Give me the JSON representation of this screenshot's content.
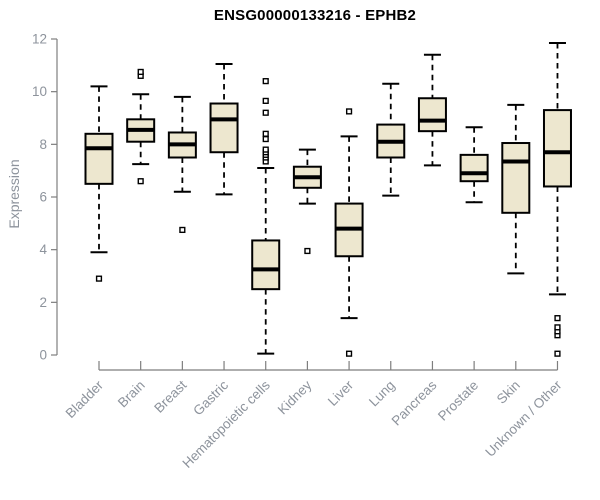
{
  "chart_data": {
    "type": "boxplot",
    "title": "ENSG00000133216 - EPHB2",
    "ylabel": "Expression",
    "xlabel": "",
    "ylim": [
      0,
      12
    ],
    "yticks": [
      0,
      2,
      4,
      6,
      8,
      10,
      12
    ],
    "grid": false,
    "legend": false,
    "box_fill": "#EDE7CF",
    "box_stroke": "#000000",
    "axis_color": "#7E7E7E",
    "axis_text_color": "#8D939C",
    "categories": [
      "Bladder",
      "Brain",
      "Breast",
      "Gastric",
      "Hematopoietic cells",
      "Kidney",
      "Liver",
      "Lung",
      "Pancreas",
      "Prostate",
      "Skin",
      "Unknown / Other"
    ],
    "series": [
      {
        "name": "Bladder",
        "low": 3.9,
        "q1": 6.5,
        "median": 7.85,
        "q3": 8.4,
        "high": 10.2,
        "outliers": [
          2.9
        ]
      },
      {
        "name": "Brain",
        "low": 7.25,
        "q1": 8.1,
        "median": 8.55,
        "q3": 8.95,
        "high": 9.9,
        "outliers": [
          6.6,
          10.6,
          10.75
        ]
      },
      {
        "name": "Breast",
        "low": 6.2,
        "q1": 7.5,
        "median": 8.0,
        "q3": 8.45,
        "high": 9.8,
        "outliers": [
          4.75
        ]
      },
      {
        "name": "Gastric",
        "low": 6.1,
        "q1": 7.7,
        "median": 8.95,
        "q3": 9.55,
        "high": 11.05,
        "outliers": []
      },
      {
        "name": "Hematopoietic cells",
        "low": 0.05,
        "q1": 2.5,
        "median": 3.25,
        "q3": 4.35,
        "high": 7.1,
        "outliers": [
          7.35,
          7.5,
          7.6,
          7.7,
          7.8,
          8.2,
          8.4,
          9.2,
          9.65,
          10.4
        ]
      },
      {
        "name": "Kidney",
        "low": 5.75,
        "q1": 6.35,
        "median": 6.75,
        "q3": 7.15,
        "high": 7.8,
        "outliers": [
          3.95
        ]
      },
      {
        "name": "Liver",
        "low": 1.4,
        "q1": 3.75,
        "median": 4.8,
        "q3": 5.75,
        "high": 8.3,
        "outliers": [
          0.05,
          9.25
        ]
      },
      {
        "name": "Lung",
        "low": 6.05,
        "q1": 7.5,
        "median": 8.1,
        "q3": 8.75,
        "high": 10.3,
        "outliers": []
      },
      {
        "name": "Pancreas",
        "low": 7.2,
        "q1": 8.5,
        "median": 8.9,
        "q3": 9.75,
        "high": 11.4,
        "outliers": []
      },
      {
        "name": "Prostate",
        "low": 5.8,
        "q1": 6.6,
        "median": 6.9,
        "q3": 7.6,
        "high": 8.65,
        "outliers": []
      },
      {
        "name": "Skin",
        "low": 3.1,
        "q1": 5.4,
        "median": 7.35,
        "q3": 8.05,
        "high": 9.5,
        "outliers": []
      },
      {
        "name": "Unknown / Other",
        "low": 2.3,
        "q1": 6.4,
        "median": 7.7,
        "q3": 9.3,
        "high": 11.85,
        "outliers": [
          0.05,
          0.75,
          0.9,
          1.05,
          1.4
        ]
      }
    ]
  }
}
